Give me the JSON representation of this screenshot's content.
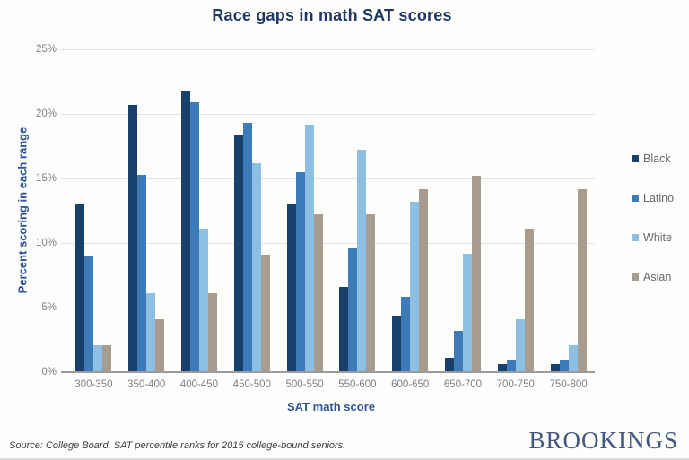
{
  "title": "Race gaps in math SAT scores",
  "axes": {
    "y_label": "Percent scoring in each range",
    "x_label": "SAT math score"
  },
  "source_note": "Source: College Board, SAT percentile ranks for 2015 college-bound seniors.",
  "brand": "BROOKINGS",
  "colors": {
    "title_text": "#1f3864",
    "axis_label_text": "#2e5496",
    "tick_label_text": "#808080",
    "gridline": "#e2e2e2",
    "axis_line": "#9b9b9b",
    "legend_text": "#666666",
    "brand_text": "#44597f"
  },
  "chart_data": {
    "type": "bar",
    "title": "Race gaps in math SAT scores",
    "xlabel": "SAT math score",
    "ylabel": "Percent scoring in each range",
    "ylim": [
      0,
      25
    ],
    "y_tick_step": 5,
    "y_tick_suffix": "%",
    "grid": true,
    "legend_position": "right",
    "categories": [
      "300-350",
      "350-400",
      "400-450",
      "450-500",
      "500-550",
      "550-600",
      "600-650",
      "650-700",
      "700-750",
      "750-800"
    ],
    "series": [
      {
        "name": "Black",
        "color": "#17406d",
        "values": [
          13,
          20.7,
          21.8,
          18.4,
          13,
          6.6,
          4.4,
          1.1,
          0.6,
          0.6
        ]
      },
      {
        "name": "Latino",
        "color": "#3d7ab8",
        "values": [
          9,
          15.3,
          20.9,
          19.3,
          15.5,
          9.6,
          5.8,
          3.2,
          0.9,
          0.9
        ]
      },
      {
        "name": "White",
        "color": "#8cbfe2",
        "values": [
          2.1,
          6.1,
          11.1,
          16.2,
          19.2,
          17.2,
          13.2,
          9.2,
          4.1,
          2.1
        ]
      },
      {
        "name": "Asian",
        "color": "#a79c8e",
        "values": [
          2.1,
          4.1,
          6.1,
          9.1,
          12.2,
          12.2,
          14.2,
          15.2,
          11.1,
          14.2
        ]
      }
    ]
  }
}
